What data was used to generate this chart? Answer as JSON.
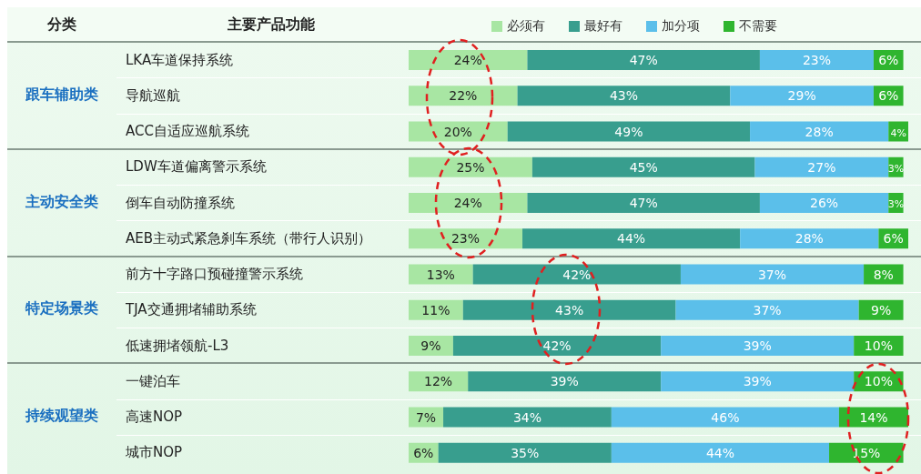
{
  "chart_data": {
    "type": "bar",
    "orientation": "horizontal",
    "stacked": true,
    "legend": "top",
    "categories": [
      "LKA车道保持系统",
      "导航巡航",
      "ACC自适应巡航系统",
      "LDW车道偏离警示系统",
      "倒车自动防撞系统",
      "AEB主动式紧急刹车系统（带行人识别）",
      "前方十字路口预碰撞警示系统",
      "TJA交通拥堵辅助系统",
      "低速拥堵领航-L3",
      "一键泊车",
      "高速NOP",
      "城市NOP"
    ],
    "annotations": [
      "分类",
      "主要产品功能",
      "跟车辅助类",
      "主动安全类",
      "特定场景类",
      "持续观望类"
    ],
    "series": [
      {
        "name": "必须有",
        "color": "#a8e6a3",
        "values": [
          24,
          22,
          20,
          25,
          24,
          23,
          13,
          11,
          9,
          12,
          7,
          6
        ],
        "value_labels": [
          "24%",
          "22%",
          "20%",
          "25%",
          "24%",
          "23%",
          "13%",
          "11%",
          "9%",
          "12%",
          "7%",
          "6%"
        ]
      },
      {
        "name": "最好有",
        "color": "#389e8e",
        "values": [
          47,
          43,
          49,
          45,
          47,
          44,
          42,
          43,
          42,
          39,
          34,
          35
        ],
        "value_labels": [
          "47%",
          "43%",
          "49%",
          "45%",
          "47%",
          "44%",
          "42%",
          "43%",
          "42%",
          "39%",
          "34%",
          "35%"
        ]
      },
      {
        "name": "加分项",
        "color": "#5bbfea",
        "values": [
          23,
          29,
          28,
          27,
          26,
          28,
          37,
          37,
          39,
          39,
          46,
          44
        ],
        "value_labels": [
          "23%",
          "29%",
          "28%",
          "27%",
          "26%",
          "28%",
          "37%",
          "37%",
          "39%",
          "39%",
          "46%",
          "44%"
        ]
      },
      {
        "name": "不需要",
        "color": "#2fb52f",
        "values": [
          6,
          6,
          4,
          3,
          3,
          6,
          8,
          9,
          10,
          10,
          14,
          15
        ],
        "value_labels": [
          "6%",
          "6%",
          "4%",
          "3%",
          "3%",
          "6%",
          "8%",
          "9%",
          "10%",
          "10%",
          "14%",
          "15%"
        ]
      }
    ]
  }
}
